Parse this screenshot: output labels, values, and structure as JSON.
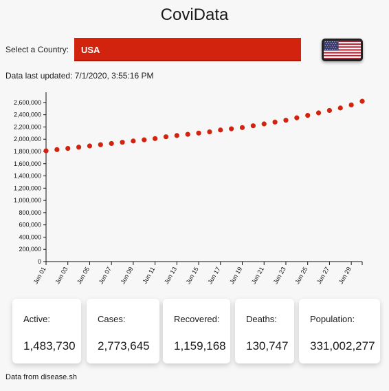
{
  "app": {
    "title": "CoviData"
  },
  "country": {
    "label": "Select a Country:",
    "selected": "USA",
    "flag_icon": "us-flag-icon",
    "select_color": "#d2230f"
  },
  "updated": {
    "text": "Data last updated: 7/1/2020, 3:55:16 PM"
  },
  "chart_data": {
    "type": "scatter",
    "title": "",
    "xlabel": "",
    "ylabel": "",
    "color": "#d2230f",
    "ylim": [
      0,
      2700000
    ],
    "y_ticks": [
      "0",
      "200,000",
      "400,000",
      "600,000",
      "800,000",
      "1,000,000",
      "1,200,000",
      "1,400,000",
      "1,600,000",
      "1,800,000",
      "2,000,000",
      "2,200,000",
      "2,400,000",
      "2,600,000"
    ],
    "x_ticks": [
      "Jun 01",
      "Jun 03",
      "Jun 05",
      "Jun 07",
      "Jun 09",
      "Jun 11",
      "Jun 13",
      "Jun 15",
      "Jun 17",
      "Jun 19",
      "Jun 21",
      "Jun 23",
      "Jun 25",
      "Jun 27",
      "Jun 29"
    ],
    "x": [
      "2020-06-01",
      "2020-06-02",
      "2020-06-03",
      "2020-06-04",
      "2020-06-05",
      "2020-06-06",
      "2020-06-07",
      "2020-06-08",
      "2020-06-09",
      "2020-06-10",
      "2020-06-11",
      "2020-06-12",
      "2020-06-13",
      "2020-06-14",
      "2020-06-15",
      "2020-06-16",
      "2020-06-17",
      "2020-06-18",
      "2020-06-19",
      "2020-06-20",
      "2020-06-21",
      "2020-06-22",
      "2020-06-23",
      "2020-06-24",
      "2020-06-25",
      "2020-06-26",
      "2020-06-27",
      "2020-06-28",
      "2020-06-29",
      "2020-06-30"
    ],
    "values": [
      1810000,
      1830000,
      1850000,
      1870000,
      1890000,
      1910000,
      1930000,
      1950000,
      1970000,
      1990000,
      2010000,
      2040000,
      2060000,
      2080000,
      2100000,
      2120000,
      2150000,
      2170000,
      2190000,
      2220000,
      2250000,
      2280000,
      2310000,
      2350000,
      2390000,
      2430000,
      2470000,
      2510000,
      2560000,
      2620000
    ]
  },
  "stats": {
    "active": {
      "label": "Active:",
      "value": "1,483,730"
    },
    "cases": {
      "label": "Cases:",
      "value": "2,773,645"
    },
    "recovered": {
      "label": "Recovered:",
      "value": "1,159,168"
    },
    "deaths": {
      "label": "Deaths:",
      "value": "130,747"
    },
    "population": {
      "label": "Population:",
      "value": "331,002,277"
    }
  },
  "footer": {
    "source": "Data from disease.sh"
  }
}
